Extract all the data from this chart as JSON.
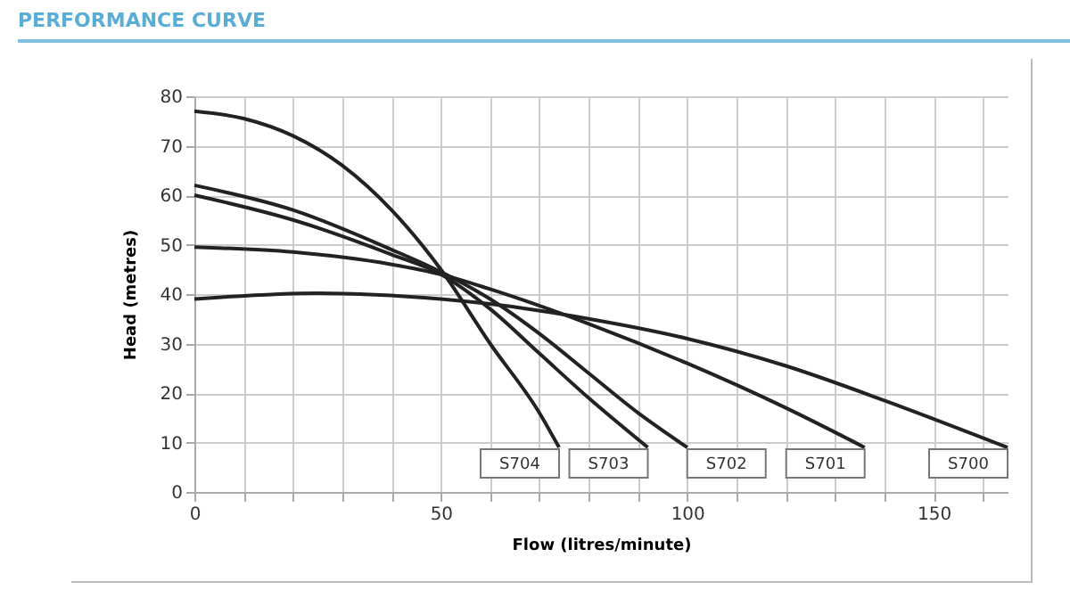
{
  "chart_data": {
    "type": "line",
    "title": "PERFORMANCE CURVE",
    "xlabel": "Flow (litres/minute)",
    "ylabel": "Head (metres)",
    "xlim": [
      0,
      165
    ],
    "xticks": [
      0,
      {
        "value": 10,
        "label": null
      },
      {
        "value": 20,
        "label": null
      },
      {
        "value": 30,
        "label": null
      },
      {
        "value": 40,
        "label": null
      },
      50,
      {
        "value": 60,
        "label": null
      },
      {
        "value": 70,
        "label": null
      },
      {
        "value": 80,
        "label": null
      },
      {
        "value": 90,
        "label": null
      },
      100,
      {
        "value": 110,
        "label": null
      },
      {
        "value": 120,
        "label": null
      },
      {
        "value": 130,
        "label": null
      },
      {
        "value": 140,
        "label": null
      },
      150,
      {
        "value": 160,
        "label": null
      }
    ],
    "ylim": [
      0,
      80
    ],
    "yticks": [
      0,
      10,
      20,
      30,
      40,
      50,
      60,
      70,
      80
    ],
    "grid": true,
    "legend": false,
    "marker": "none",
    "line_style": "solid",
    "series": [
      {
        "name": "S704",
        "color": "#222222",
        "x": [
          0,
          10,
          20,
          30,
          40,
          50,
          60,
          70,
          74
        ],
        "values": [
          77,
          75.5,
          72,
          66,
          57,
          45,
          30,
          16,
          9
        ]
      },
      {
        "name": "S703",
        "color": "#222222",
        "x": [
          0,
          20,
          40,
          50,
          60,
          70,
          80,
          92
        ],
        "values": [
          60,
          55,
          48,
          44,
          37,
          28,
          19,
          9
        ]
      },
      {
        "name": "S702",
        "color": "#222222",
        "x": [
          0,
          20,
          40,
          50,
          60,
          70,
          80,
          90,
          100
        ],
        "values": [
          62,
          57,
          49,
          44.5,
          39,
          32,
          24,
          16,
          9
        ]
      },
      {
        "name": "S701",
        "color": "#222222",
        "x": [
          0,
          20,
          40,
          50,
          60,
          80,
          100,
          120,
          136
        ],
        "values": [
          49.5,
          48.5,
          46,
          44,
          41,
          34,
          26,
          17,
          9
        ]
      },
      {
        "name": "S700",
        "color": "#222222",
        "x": [
          0,
          25,
          50,
          60,
          80,
          100,
          120,
          140,
          165
        ],
        "values": [
          39,
          40.2,
          39,
          38,
          35,
          31,
          25.5,
          18.5,
          9
        ]
      }
    ]
  }
}
